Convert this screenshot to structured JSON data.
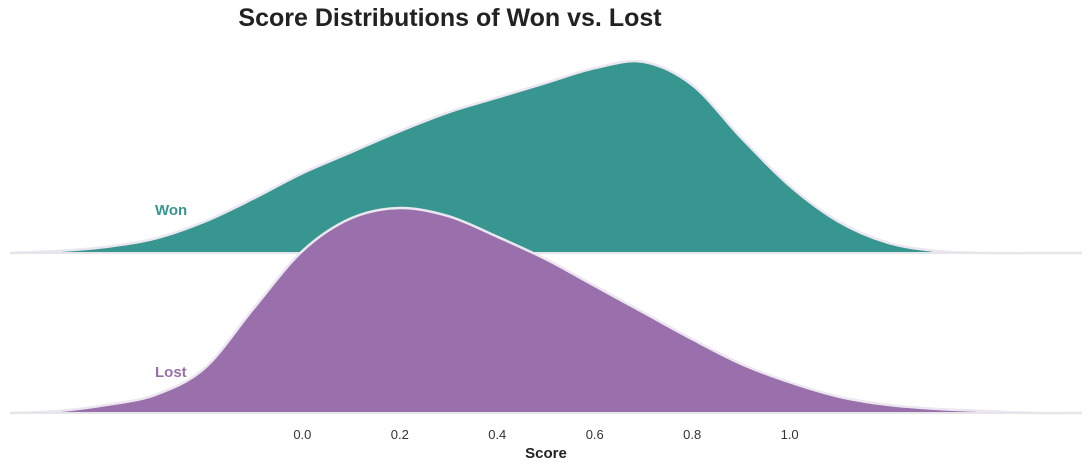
{
  "chart_data": {
    "type": "area",
    "title": "Score Distributions of Won vs. Lost",
    "xlabel": "Score",
    "ylabel": "",
    "x_ticks": [
      "0.0",
      "0.2",
      "0.4",
      "0.6",
      "0.8",
      "1.0"
    ],
    "xlim": [
      -0.6,
      1.6
    ],
    "grid": false,
    "legend": "none",
    "series": [
      {
        "name": "Won",
        "color": "#37968f",
        "label_color": "#37968f",
        "x": [
          -0.6,
          -0.5,
          -0.4,
          -0.3,
          -0.2,
          -0.1,
          0.0,
          0.1,
          0.2,
          0.3,
          0.4,
          0.5,
          0.6,
          0.7,
          0.8,
          0.9,
          1.0,
          1.1,
          1.2,
          1.3,
          1.4,
          1.5,
          1.6
        ],
        "density": [
          0.0,
          0.01,
          0.03,
          0.07,
          0.15,
          0.26,
          0.38,
          0.48,
          0.58,
          0.67,
          0.74,
          0.81,
          0.88,
          0.91,
          0.8,
          0.55,
          0.32,
          0.15,
          0.05,
          0.01,
          0.0,
          0.0,
          0.0
        ]
      },
      {
        "name": "Lost",
        "color": "#9970ab",
        "label_color": "#9970ab",
        "x": [
          -0.6,
          -0.5,
          -0.4,
          -0.3,
          -0.2,
          -0.1,
          0.0,
          0.1,
          0.2,
          0.3,
          0.4,
          0.5,
          0.6,
          0.7,
          0.8,
          0.9,
          1.0,
          1.1,
          1.2,
          1.3,
          1.4,
          1.5,
          1.6
        ],
        "density": [
          0.0,
          0.01,
          0.04,
          0.09,
          0.22,
          0.51,
          0.79,
          0.95,
          1.0,
          0.96,
          0.86,
          0.75,
          0.62,
          0.49,
          0.36,
          0.24,
          0.15,
          0.08,
          0.04,
          0.02,
          0.01,
          0.0,
          0.0
        ]
      }
    ]
  }
}
